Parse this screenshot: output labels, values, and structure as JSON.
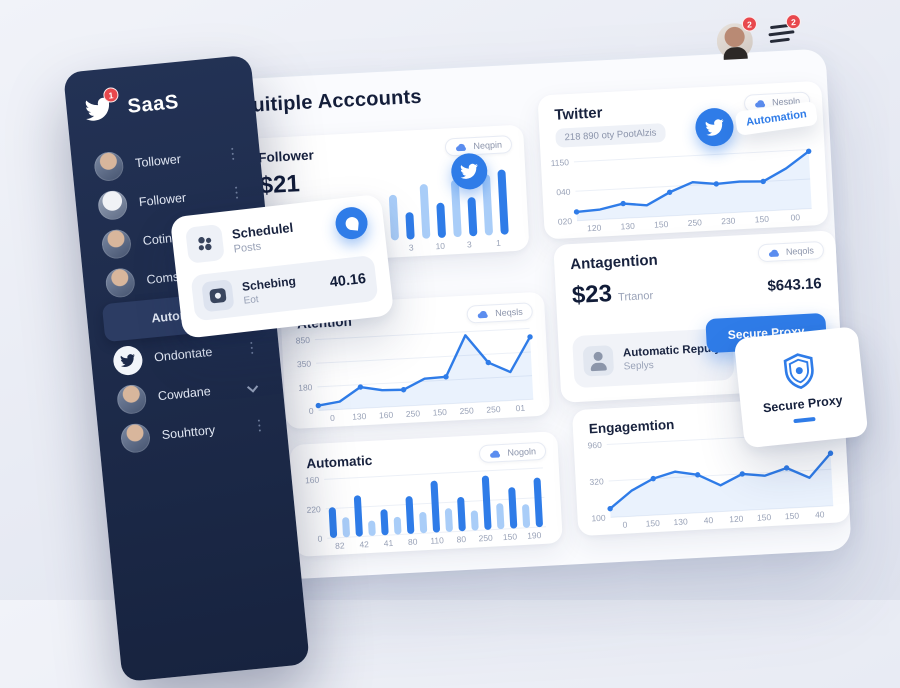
{
  "theme": {
    "accent": "#2f7ce8",
    "accent_light": "#a9cdf8",
    "sidebar_bg": "#1d2a4a",
    "danger": "#e8484d",
    "text_dark": "#16203a",
    "text_grey": "#98a1b6"
  },
  "header": {
    "title": "Tuitiple Acccounts"
  },
  "topbar": {
    "avatar_badge": "2",
    "menu_badge": "2"
  },
  "sidebar": {
    "logo_title": "SaaS",
    "logo_badge": "1",
    "items": [
      {
        "label": "Tollower"
      },
      {
        "label": "Follower"
      },
      {
        "label": "Cotinos"
      },
      {
        "label": "Comsigon"
      },
      {
        "label": "Automation"
      },
      {
        "label": "Ondontate"
      },
      {
        "label": "Cowdane"
      },
      {
        "label": "Souhttory"
      }
    ]
  },
  "cards": {
    "follower": {
      "title": "Follower",
      "badge": "Neqpin",
      "value": "$21"
    },
    "atention": {
      "title": "Atention",
      "badge": "Neqsls"
    },
    "automatic": {
      "title": "Automatic",
      "badge": "Nogoln"
    },
    "twitter": {
      "title": "Twitter",
      "badge": "Nespln",
      "metric_pill": "218 890 oty PootAlzis",
      "tooltip_label": "Automation"
    },
    "antagention": {
      "title": "Antagention",
      "badge": "Neqols",
      "value": "$23",
      "value_note": "Trtanor",
      "secondary_value": "$643.16",
      "row_title": "Automatic Repuly",
      "row_sub": "Seplys",
      "button_label": "Secure Proxy"
    },
    "engagemtion": {
      "title": "Engagemtion"
    }
  },
  "overlays": {
    "schedule_rows": [
      {
        "title": "Schedulel",
        "sub": "Posts",
        "value": ""
      },
      {
        "title": "Schebing",
        "sub": "Eot",
        "value": "40.16"
      }
    ],
    "secure_proxy_label": "Secure Proxy"
  },
  "chart_data": [
    {
      "id": "follower",
      "type": "bar",
      "title": "Follower",
      "x_ticks": [
        "1",
        "2",
        "2",
        "3",
        "10",
        "3",
        "1"
      ],
      "y_ticks": [],
      "values": [
        32,
        50,
        28,
        58,
        36,
        70,
        42,
        84,
        54,
        88,
        60,
        94,
        100
      ],
      "ylim": [
        0,
        100
      ],
      "colors": [
        "#2f7ce8",
        "#a9cdf8"
      ],
      "legend": "none",
      "grid": false
    },
    {
      "id": "atention",
      "type": "line",
      "title": "Atention",
      "x_ticks": [
        "0",
        "130",
        "160",
        "250",
        "150",
        "250",
        "250",
        "01"
      ],
      "y_ticks": [
        "850",
        "350",
        "180",
        "0"
      ],
      "values": [
        7,
        11,
        30,
        24,
        23,
        37,
        38,
        95,
        55,
        40,
        88
      ],
      "ylim": [
        0,
        100
      ],
      "colors": [
        "#2f7ce8"
      ],
      "dots": true,
      "area": true,
      "grid": true
    },
    {
      "id": "automatic",
      "type": "bar",
      "title": "Automatic",
      "x_ticks": [
        "82",
        "42",
        "41",
        "80",
        "110",
        "80",
        "250",
        "150",
        "190"
      ],
      "y_ticks": [
        "160",
        "220",
        "0"
      ],
      "values": [
        52,
        34,
        70,
        26,
        44,
        30,
        64,
        36,
        88,
        40,
        58,
        34,
        92,
        44,
        70,
        40,
        84
      ],
      "ylim": [
        0,
        100
      ],
      "colors": [
        "#2f7ce8",
        "#a9cdf8"
      ],
      "grid": true
    },
    {
      "id": "twitter",
      "type": "line",
      "title": "Twitter",
      "x_ticks": [
        "120",
        "130",
        "150",
        "250",
        "230",
        "150",
        "00"
      ],
      "y_ticks": [
        "1150",
        "040",
        "020"
      ],
      "values": [
        15,
        17,
        25,
        20,
        40,
        55,
        50,
        52,
        50,
        70,
        97
      ],
      "ylim": [
        0,
        100
      ],
      "colors": [
        "#2f7ce8"
      ],
      "dots": true,
      "area": true,
      "grid": true
    },
    {
      "id": "engagemtion",
      "type": "line",
      "title": "Engagemtion",
      "x_ticks": [
        "0",
        "150",
        "130",
        "40",
        "120",
        "150",
        "150",
        "40"
      ],
      "y_ticks": [
        "960",
        "320",
        "100"
      ],
      "values": [
        12,
        35,
        50,
        58,
        52,
        36,
        50,
        46,
        55,
        40,
        72
      ],
      "ylim": [
        0,
        100
      ],
      "colors": [
        "#2f7ce8"
      ],
      "dots": true,
      "area": true,
      "grid": true
    }
  ]
}
